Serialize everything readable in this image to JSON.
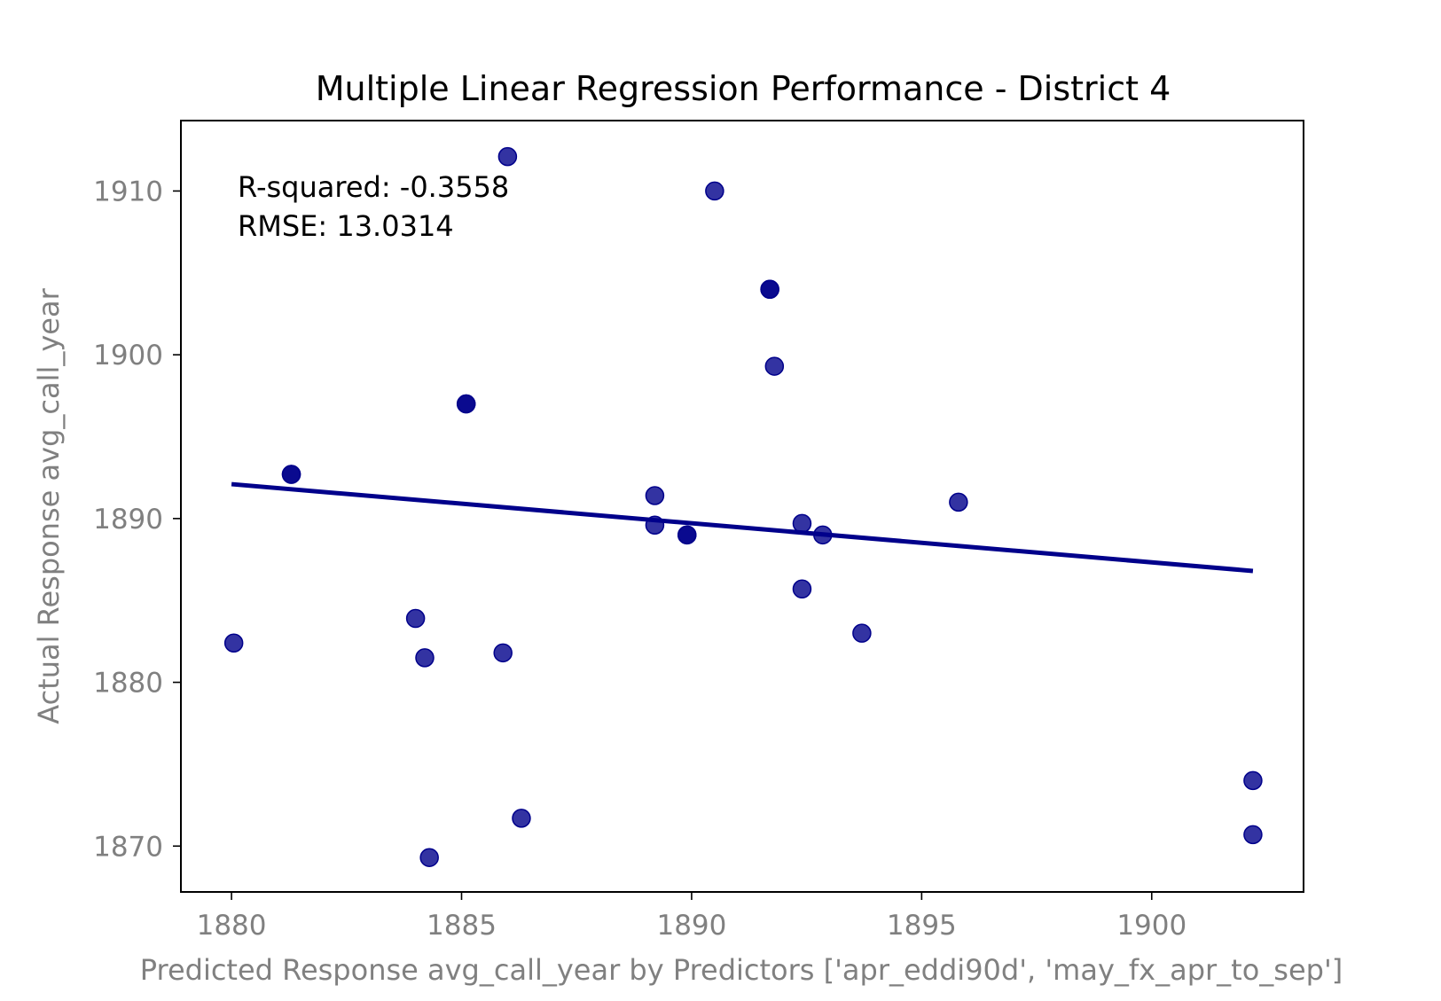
{
  "chart_data": {
    "type": "scatter",
    "title": "Multiple Linear Regression Performance - District 4",
    "xlabel": "Predicted Response avg_call_year by Predictors ['apr_eddi90d', 'may_fx_apr_to_sep']",
    "ylabel": "Actual Response avg_call_year",
    "xlim": [
      1878.9,
      1903.3
    ],
    "ylim": [
      1867.2,
      1914.3
    ],
    "xticks": [
      1880,
      1885,
      1890,
      1895,
      1900
    ],
    "yticks": [
      1870,
      1880,
      1890,
      1900,
      1910
    ],
    "xtick_labels": [
      "1880",
      "1885",
      "1890",
      "1895",
      "1900"
    ],
    "ytick_labels": [
      "1870",
      "1880",
      "1890",
      "1900",
      "1910"
    ],
    "grid": false,
    "annotation": {
      "r2": "R-squared: -0.3558",
      "rmse": "RMSE: 13.0314"
    },
    "marker_color": "#00008b",
    "line_color": "#00008b",
    "axis_label_color": "#808080",
    "points": [
      {
        "x": 1880.05,
        "y": 1882.4
      },
      {
        "x": 1881.3,
        "y": 1892.7
      },
      {
        "x": 1881.3,
        "y": 1892.7
      },
      {
        "x": 1884.0,
        "y": 1883.9
      },
      {
        "x": 1884.2,
        "y": 1881.5
      },
      {
        "x": 1884.3,
        "y": 1869.3
      },
      {
        "x": 1885.1,
        "y": 1897.0
      },
      {
        "x": 1885.1,
        "y": 1897.0
      },
      {
        "x": 1885.9,
        "y": 1881.8
      },
      {
        "x": 1886.0,
        "y": 1912.1
      },
      {
        "x": 1886.3,
        "y": 1871.7
      },
      {
        "x": 1889.2,
        "y": 1891.4
      },
      {
        "x": 1889.2,
        "y": 1889.6
      },
      {
        "x": 1889.9,
        "y": 1889.0
      },
      {
        "x": 1889.9,
        "y": 1889.0
      },
      {
        "x": 1890.5,
        "y": 1910.0
      },
      {
        "x": 1891.7,
        "y": 1904.0
      },
      {
        "x": 1891.7,
        "y": 1904.0
      },
      {
        "x": 1891.8,
        "y": 1899.3
      },
      {
        "x": 1892.4,
        "y": 1889.7
      },
      {
        "x": 1892.4,
        "y": 1885.7
      },
      {
        "x": 1892.85,
        "y": 1889.0
      },
      {
        "x": 1893.7,
        "y": 1883.0
      },
      {
        "x": 1895.8,
        "y": 1891.0
      },
      {
        "x": 1902.2,
        "y": 1874.0
      },
      {
        "x": 1902.2,
        "y": 1870.7
      }
    ],
    "fit_line": {
      "x": [
        1880.0,
        1902.2
      ],
      "y": [
        1892.1,
        1886.8
      ]
    }
  }
}
